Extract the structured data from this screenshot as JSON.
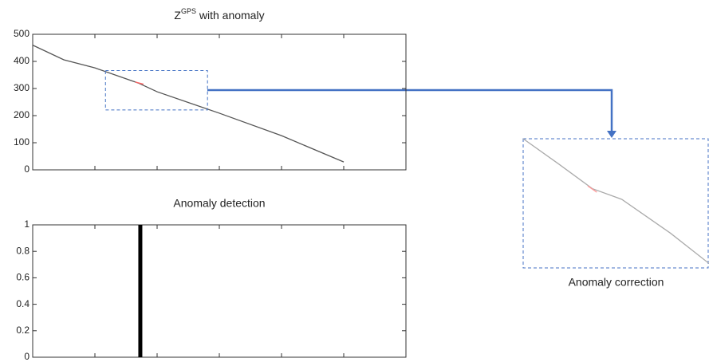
{
  "chart_data": [
    {
      "type": "line",
      "title": {
        "base": "Z",
        "sup": "GPS",
        "text": " with anomaly"
      },
      "xlim": [
        0,
        6
      ],
      "xticks": [
        0,
        1,
        2,
        3,
        4,
        5,
        6
      ],
      "ylim": [
        0,
        500
      ],
      "yticks": [
        0,
        100,
        200,
        300,
        400,
        500
      ],
      "series": [
        {
          "color": "#555555",
          "x": [
            0,
            0.5,
            1,
            1.7,
            2,
            3,
            4,
            5
          ],
          "values": [
            460,
            406,
            376,
            320,
            288,
            209,
            126,
            29
          ]
        },
        {
          "color": "#ff6666",
          "x": [
            1.65,
            1.78
          ],
          "values": [
            324,
            316
          ]
        }
      ]
    },
    {
      "type": "stem",
      "title": "Anomaly detection",
      "xlim": [
        0,
        6
      ],
      "xticks": [
        0,
        1,
        2,
        3,
        4,
        5,
        6
      ],
      "ylim": [
        0,
        1
      ],
      "yticks": [
        0,
        0.2,
        0.4,
        0.6,
        0.8,
        1
      ],
      "series": [
        {
          "color": "#000000",
          "x": [
            1.73
          ],
          "values": [
            1
          ]
        }
      ]
    },
    {
      "type": "line",
      "title": "Anomaly correction",
      "xlim": [
        1.17,
        2.81
      ],
      "ylim": [
        221,
        366
      ],
      "series": [
        {
          "color": "#aaaaaa",
          "x": [
            1.17,
            1.48,
            1.78,
            2.04,
            2.47,
            2.81
          ],
          "values": [
            366,
            338,
            310,
            298,
            260,
            226
          ]
        },
        {
          "color": "#ff9999",
          "x": [
            1.74,
            1.82
          ],
          "values": [
            313,
            306
          ]
        }
      ]
    }
  ]
}
